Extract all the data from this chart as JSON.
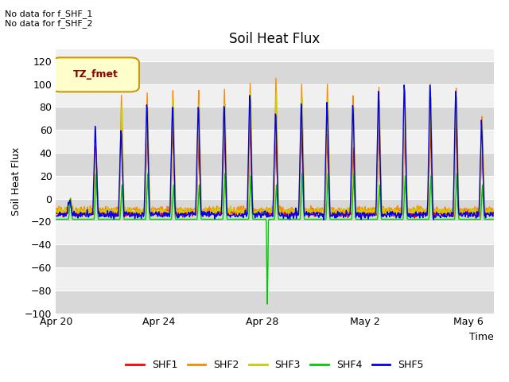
{
  "title": "Soil Heat Flux",
  "ylabel": "Soil Heat Flux",
  "xlabel": "Time",
  "note_line1": "No data for f_SHF_1",
  "note_line2": "No data for f_SHF_2",
  "legend_label": "TZ_fmet",
  "ylim": [
    -100,
    130
  ],
  "yticks": [
    -100,
    -80,
    -60,
    -40,
    -20,
    0,
    20,
    40,
    60,
    80,
    100,
    120
  ],
  "colors": {
    "SHF1": "#ff0000",
    "SHF2": "#ff8800",
    "SHF3": "#cccc00",
    "SHF4": "#00cc00",
    "SHF5": "#0000ee"
  },
  "plot_bg_light": "#f0f0f0",
  "plot_bg_dark": "#d8d8d8",
  "legend_bg": "#ffffcc",
  "legend_border": "#cc9900",
  "grid_color": "#ffffff"
}
